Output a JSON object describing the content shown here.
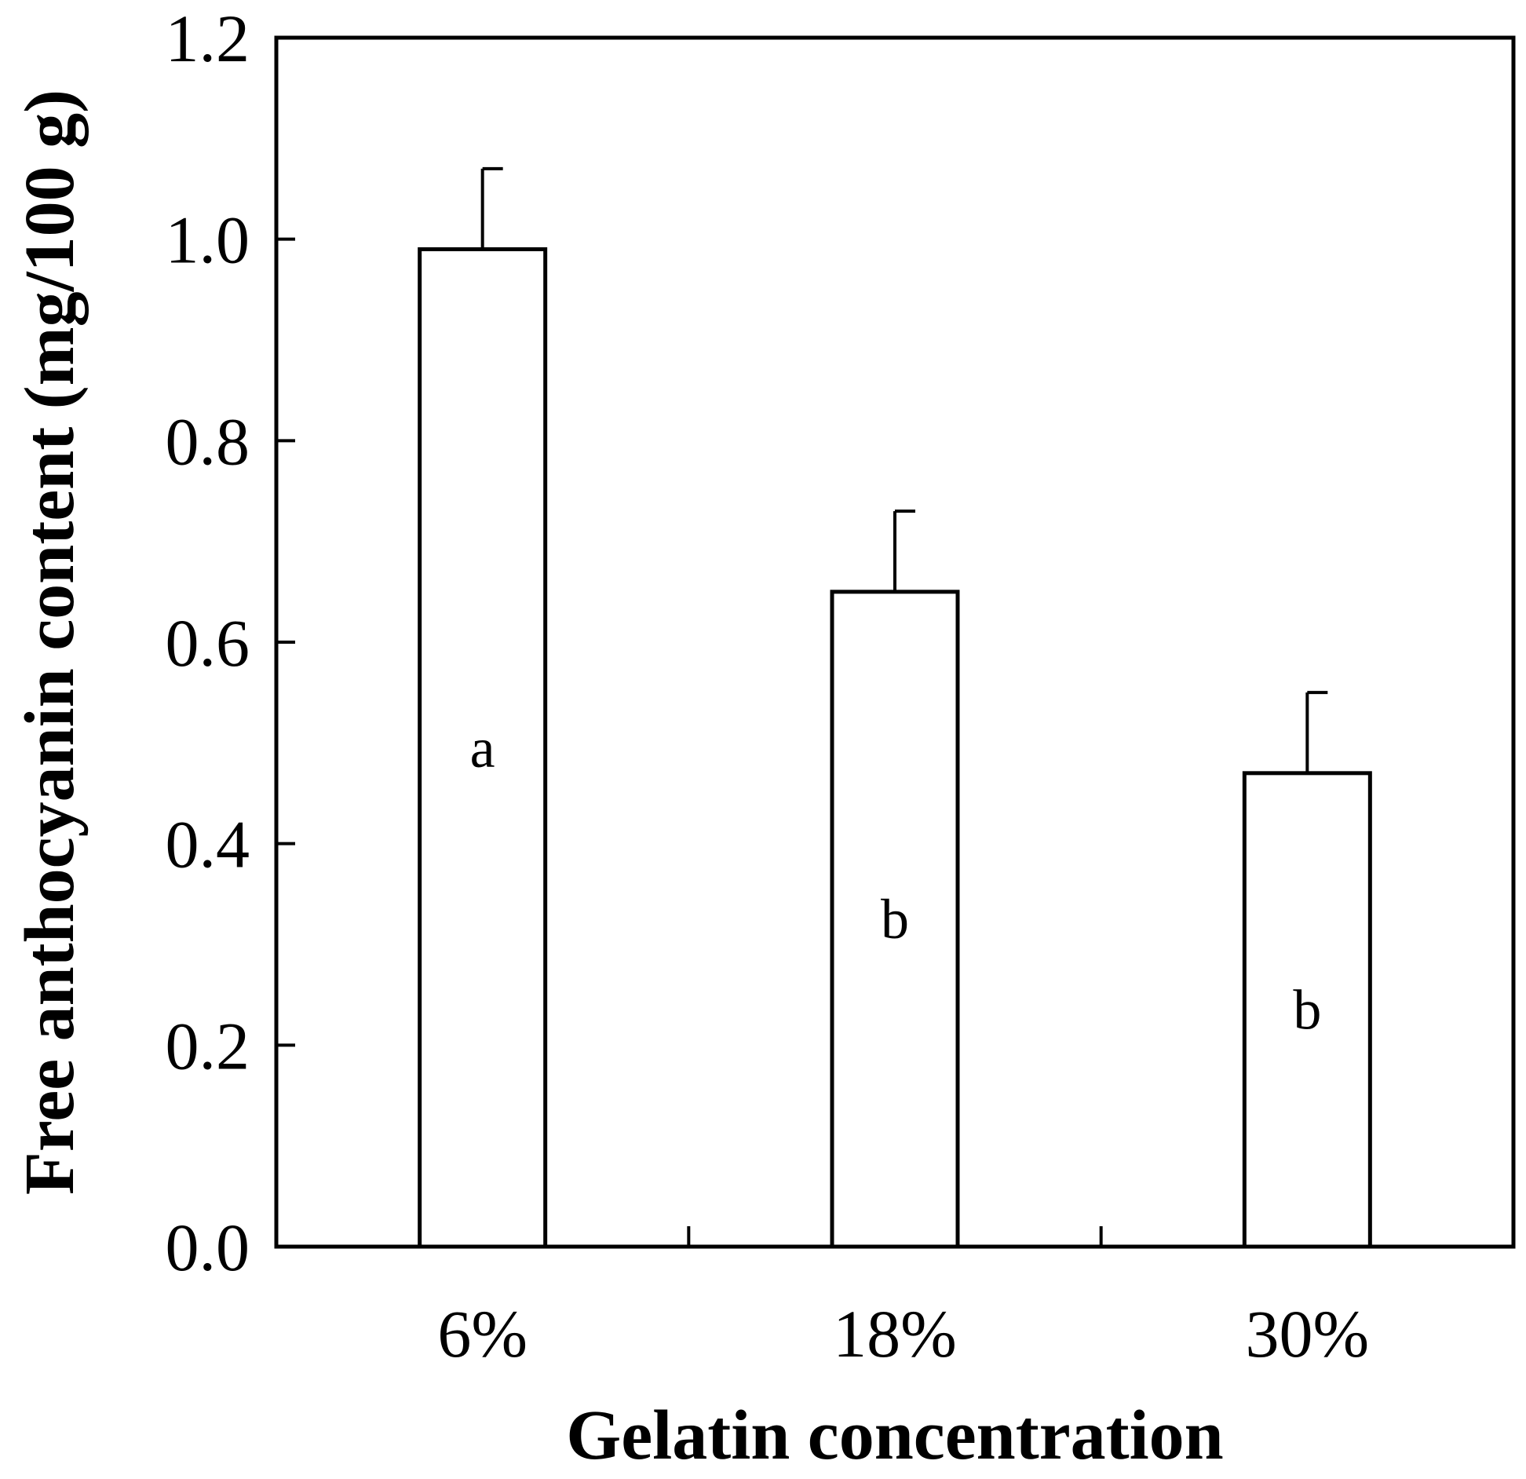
{
  "chart_data": {
    "type": "bar",
    "categories": [
      "6%",
      "18%",
      "30%"
    ],
    "values": [
      0.99,
      0.65,
      0.47
    ],
    "errors": [
      0.08,
      0.08,
      0.08
    ],
    "significance": [
      "a",
      "b",
      "b"
    ],
    "xlabel": "Gelatin concentration",
    "ylabel": "Free anthocyanin content (mg/100 g)",
    "ylim": [
      0,
      1.2
    ],
    "yticks": [
      "0.0",
      "0.2",
      "0.4",
      "0.6",
      "0.8",
      "1.0",
      "1.2"
    ],
    "ytick_values": [
      0,
      0.2,
      0.4,
      0.6,
      0.8,
      1.0,
      1.2
    ],
    "grid": false,
    "bar_fill": "#ffffff",
    "bar_stroke": "#000000"
  }
}
